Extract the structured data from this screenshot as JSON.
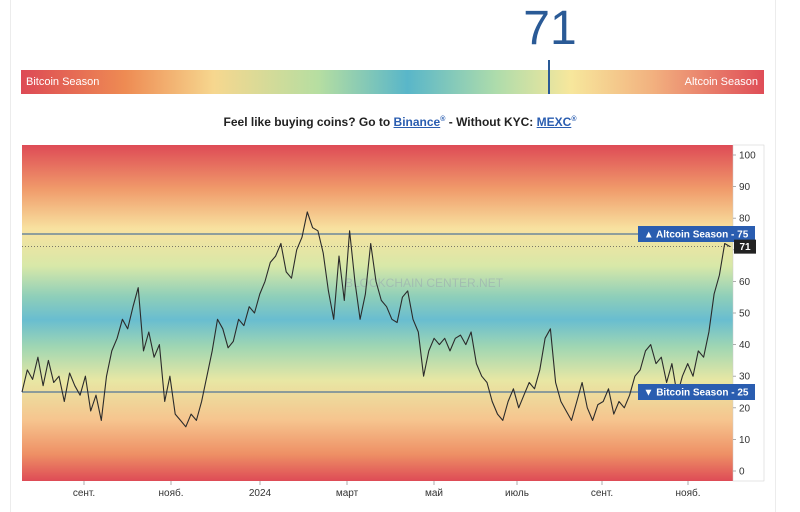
{
  "header": {
    "index_value": "71",
    "bar_left_label": "Bitcoin Season",
    "bar_right_label": "Altcoin Season"
  },
  "promo": {
    "prefix": "Feel like buying coins? Go to",
    "link1": "Binance",
    "link1_mark": "®",
    "middle": "- Without KYC:",
    "link2": "MEXC",
    "link2_mark": "®"
  },
  "colors": {
    "accent": "#2a5a96",
    "line": "#2b2b2b",
    "badge": "#2a5db0",
    "current_badge": "#222222"
  },
  "chart_data": {
    "type": "line",
    "ylim": [
      0,
      100
    ],
    "yticks": [
      "0",
      "10",
      "20",
      "30",
      "40",
      "50",
      "60",
      "70",
      "80",
      "90",
      "100"
    ],
    "xticks": [
      "сент.",
      "нояб.",
      "2024",
      "март",
      "май",
      "июль",
      "сент.",
      "нояб."
    ],
    "watermark": "BLOCKCHAIN CENTER.NET",
    "reference_lines": [
      {
        "label": "▲ Altcoin Season - 75",
        "value": 75
      },
      {
        "label": "▼ Bitcoin Season - 25",
        "value": 25
      }
    ],
    "current": {
      "label": "71",
      "value": 71
    },
    "series": [
      {
        "values": [
          25,
          32,
          29,
          36,
          27,
          35,
          28,
          30,
          22,
          31,
          27,
          24,
          30,
          19,
          24,
          16,
          30,
          38,
          42,
          48,
          45,
          52,
          58,
          38,
          44,
          36,
          40,
          22,
          30,
          18,
          16,
          14,
          18,
          16,
          22,
          30,
          38,
          48,
          45,
          39,
          41,
          48,
          46,
          52,
          50,
          56,
          60,
          66,
          68,
          72,
          63,
          61,
          70,
          74,
          82,
          77,
          76,
          69,
          57,
          48,
          68,
          54,
          76,
          60,
          48,
          56,
          72,
          60,
          54,
          52,
          48,
          47,
          55,
          57,
          48,
          44,
          30,
          38,
          42,
          40,
          42,
          38,
          42,
          43,
          40,
          44,
          34,
          30,
          28,
          22,
          18,
          16,
          22,
          26,
          20,
          24,
          28,
          26,
          32,
          42,
          45,
          28,
          22,
          19,
          16,
          22,
          28,
          20,
          16,
          21,
          22,
          26,
          18,
          22,
          20,
          24,
          30,
          32,
          38,
          40,
          34,
          36,
          28,
          34,
          24,
          30,
          34,
          30,
          38,
          36,
          44,
          56,
          62,
          72,
          71
        ]
      }
    ]
  }
}
